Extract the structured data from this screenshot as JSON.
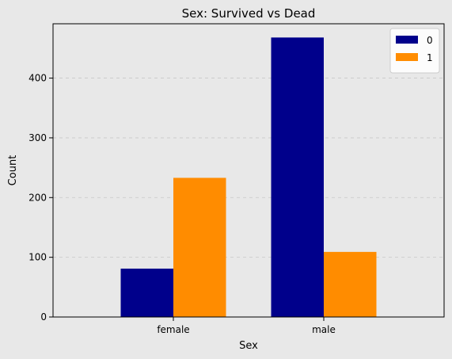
{
  "chart_data": {
    "type": "bar",
    "title": "Sex: Survived vs Dead",
    "xlabel": "Sex",
    "ylabel": "Count",
    "categories": [
      "female",
      "male"
    ],
    "series": [
      {
        "name": "0",
        "values": [
          81,
          468
        ],
        "color": "#00008b"
      },
      {
        "name": "1",
        "values": [
          233,
          109
        ],
        "color": "#ff8c00"
      }
    ],
    "ylim": [
      0,
      491
    ],
    "yticks": [
      0,
      100,
      200,
      300,
      400
    ],
    "grid": "y-dashed",
    "legend_position": "top-right",
    "background_color": "#e8e8e8"
  }
}
